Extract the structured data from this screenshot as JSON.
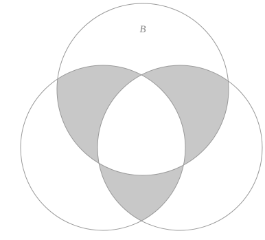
{
  "diagram": {
    "label": "B"
  }
}
